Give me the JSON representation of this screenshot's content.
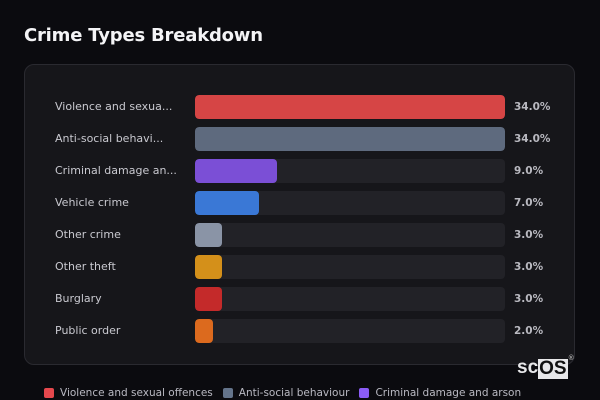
{
  "page": {
    "title": "Crime Types Breakdown"
  },
  "chart_data": {
    "type": "bar",
    "orientation": "horizontal",
    "title": "Crime Types Breakdown",
    "xlabel": "",
    "ylabel": "",
    "xlim": [
      0,
      34
    ],
    "categories": [
      "Violence and sexual offences",
      "Anti-social behaviour",
      "Criminal damage and arson",
      "Vehicle crime",
      "Other crime",
      "Other theft",
      "Burglary",
      "Public order"
    ],
    "display_labels": [
      "Violence and sexua...",
      "Anti-social behavi...",
      "Criminal damage an...",
      "Vehicle crime",
      "Other crime",
      "Other theft",
      "Burglary",
      "Public order"
    ],
    "values": [
      34.0,
      34.0,
      9.0,
      7.0,
      3.0,
      3.0,
      3.0,
      2.0
    ],
    "value_labels": [
      "34.0%",
      "34.0%",
      "9.0%",
      "7.0%",
      "3.0%",
      "3.0%",
      "3.0%",
      "2.0%"
    ],
    "colors": [
      "#d64545",
      "#5e6a7e",
      "#7b4fd6",
      "#3a78d6",
      "#8a94a6",
      "#d4901a",
      "#c42a2a",
      "#dc6a1e"
    ],
    "grid": false,
    "legend_position": "bottom"
  },
  "rows": [
    {
      "label": "Violence and sexua...",
      "value": "34.0%",
      "pct": 100,
      "color": "#d64545"
    },
    {
      "label": "Anti-social behavi...",
      "value": "34.0%",
      "pct": 100,
      "color": "#5e6a7e"
    },
    {
      "label": "Criminal damage an...",
      "value": "9.0%",
      "pct": 26.5,
      "color": "#7b4fd6"
    },
    {
      "label": "Vehicle crime",
      "value": "7.0%",
      "pct": 20.6,
      "color": "#3a78d6"
    },
    {
      "label": "Other crime",
      "value": "3.0%",
      "pct": 8.8,
      "color": "#8a94a6"
    },
    {
      "label": "Other theft",
      "value": "3.0%",
      "pct": 8.8,
      "color": "#d4901a"
    },
    {
      "label": "Burglary",
      "value": "3.0%",
      "pct": 8.8,
      "color": "#c42a2a"
    },
    {
      "label": "Public order",
      "value": "2.0%",
      "pct": 5.9,
      "color": "#dc6a1e"
    }
  ],
  "legend": [
    {
      "label": "Violence and sexual offences",
      "color": "#e5484d"
    },
    {
      "label": "Anti-social behaviour",
      "color": "#64748b"
    },
    {
      "label": "Criminal damage and arson",
      "color": "#8b5cf6"
    }
  ],
  "watermark": {
    "prefix": "sc",
    "boxed": "OS",
    "mark": "®"
  }
}
